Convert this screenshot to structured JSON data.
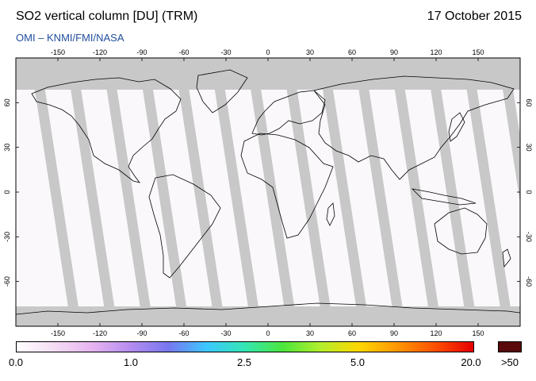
{
  "header": {
    "title": "SO2 vertical column [DU] (TRM)",
    "date": "17 October 2015",
    "credit": "OMI  –  KNMI/FMI/NASA"
  },
  "map": {
    "lon_ticks": [
      "-150",
      "-120",
      "-90",
      "-60",
      "-30",
      "0",
      "30",
      "60",
      "90",
      "120",
      "150"
    ],
    "lat_ticks": [
      "60",
      "30",
      "0",
      "-30",
      "-60"
    ],
    "colors": {
      "nodata": "#c8c8c8",
      "land_shade": "#a5a5a5",
      "background": "#fbf8fc",
      "coast": "#000000"
    }
  },
  "colorbar": {
    "labels": [
      "0.0",
      "1.0",
      "2.5",
      "5.0",
      "20.0"
    ],
    "overflow_label": ">50",
    "overflow_color": "#5a0a0a",
    "stops": [
      "#ffffff",
      "#f4dcf4",
      "#e6b4f0",
      "#b48cf0",
      "#7878f0",
      "#3cc8ff",
      "#34e6b4",
      "#4ce63c",
      "#b4ee2c",
      "#ffd700",
      "#ff9600",
      "#ff5000",
      "#e60000"
    ]
  }
}
